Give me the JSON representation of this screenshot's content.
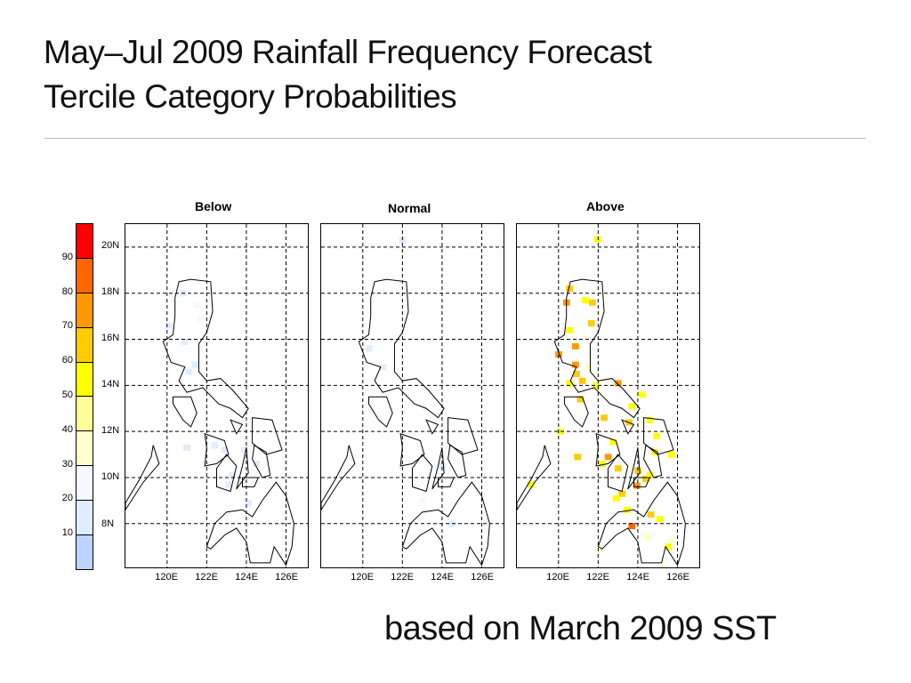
{
  "title_line1": "May–Jul 2009 Rainfall Frequency Forecast",
  "title_line2": "Tercile Category Probabilities",
  "footer": "based on March 2009 SST",
  "colorbar": {
    "labels": [
      "10",
      "20",
      "30",
      "40",
      "50",
      "60",
      "70",
      "80",
      "90"
    ],
    "colors": [
      "#bcd4ff",
      "#e0ecff",
      "#f5f8ff",
      "#ffffd0",
      "#ffff99",
      "#ffff00",
      "#ffcc00",
      "#ff9900",
      "#ff6600",
      "#ff0000"
    ]
  },
  "lat_labels": [
    "20N",
    "18N",
    "16N",
    "14N",
    "12N",
    "10N",
    "8N"
  ],
  "lon_labels": [
    "120E",
    "122E",
    "124E",
    "126E"
  ],
  "extent": {
    "lon": [
      117.9,
      127.1
    ],
    "lat": [
      6.1,
      21.0
    ]
  },
  "panels": [
    {
      "title": "Below",
      "cells": [
        [
          120.8,
          18.0,
          1
        ],
        [
          121.5,
          17.5,
          2
        ],
        [
          120.9,
          15.9,
          1
        ],
        [
          121.4,
          14.9,
          1
        ],
        [
          121.1,
          14.6,
          1
        ],
        [
          122.4,
          11.4,
          1
        ],
        [
          122.9,
          11.2,
          1
        ],
        [
          121.0,
          11.3,
          1
        ],
        [
          123.3,
          10.1,
          1
        ],
        [
          124.5,
          10.6,
          1
        ],
        [
          123.9,
          11.2,
          1
        ],
        [
          123.1,
          9.7,
          1
        ],
        [
          124.1,
          8.9,
          1
        ],
        [
          121.7,
          16.9,
          2
        ],
        [
          120.1,
          16.6,
          1
        ]
      ]
    },
    {
      "title": "Normal",
      "cells": [
        [
          122.0,
          20.3,
          1
        ],
        [
          121.0,
          14.8,
          1
        ],
        [
          124.0,
          10.5,
          1
        ],
        [
          124.5,
          8.0,
          1
        ],
        [
          123.0,
          9.0,
          2
        ],
        [
          120.3,
          15.6,
          1
        ]
      ]
    },
    {
      "title": "Above",
      "cells": [
        [
          121.97,
          20.35,
          5
        ],
        [
          120.55,
          18.2,
          6
        ],
        [
          120.4,
          17.6,
          7
        ],
        [
          121.35,
          17.7,
          5
        ],
        [
          121.7,
          17.6,
          6
        ],
        [
          121.65,
          16.7,
          6
        ],
        [
          120.55,
          16.4,
          5
        ],
        [
          120.85,
          15.7,
          7
        ],
        [
          120.0,
          15.35,
          7
        ],
        [
          120.85,
          14.9,
          7
        ],
        [
          120.9,
          14.5,
          6
        ],
        [
          121.2,
          14.2,
          6
        ],
        [
          120.55,
          14.1,
          5
        ],
        [
          123.0,
          14.1,
          7
        ],
        [
          121.1,
          13.4,
          6
        ],
        [
          122.3,
          12.6,
          6
        ],
        [
          123.55,
          12.4,
          6
        ],
        [
          120.1,
          12.0,
          5
        ],
        [
          122.75,
          11.55,
          5
        ],
        [
          120.95,
          10.9,
          6
        ],
        [
          122.5,
          10.9,
          7
        ],
        [
          122.2,
          10.6,
          5
        ],
        [
          123.0,
          10.4,
          6
        ],
        [
          124.85,
          11.1,
          5
        ],
        [
          125.7,
          11.0,
          5
        ],
        [
          124.0,
          10.3,
          6
        ],
        [
          124.4,
          9.95,
          6
        ],
        [
          123.95,
          9.65,
          7
        ],
        [
          124.6,
          10.1,
          5
        ],
        [
          123.2,
          9.3,
          6
        ],
        [
          122.9,
          9.1,
          5
        ],
        [
          123.45,
          8.6,
          5
        ],
        [
          123.7,
          7.9,
          8
        ],
        [
          124.65,
          8.4,
          6
        ],
        [
          125.1,
          8.2,
          5
        ],
        [
          124.5,
          7.4,
          3
        ],
        [
          125.55,
          7.0,
          5
        ],
        [
          125.7,
          7.3,
          3
        ],
        [
          122.05,
          6.9,
          3
        ],
        [
          125.25,
          6.1,
          3
        ],
        [
          118.6,
          9.7,
          5
        ],
        [
          124.2,
          13.6,
          5
        ],
        [
          123.7,
          13.1,
          5
        ],
        [
          124.6,
          12.5,
          5
        ],
        [
          124.95,
          11.8,
          5
        ],
        [
          121.9,
          14.0,
          5
        ],
        [
          121.5,
          14.8,
          3
        ]
      ]
    }
  ],
  "coastlines": [
    [
      [
        120.6,
        18.5
      ],
      [
        121.2,
        18.6
      ],
      [
        122.2,
        18.5
      ],
      [
        122.3,
        17.2
      ],
      [
        122.0,
        16.3
      ],
      [
        121.6,
        15.8
      ],
      [
        121.6,
        14.6
      ],
      [
        122.0,
        14.2
      ],
      [
        122.7,
        14.3
      ],
      [
        123.3,
        13.8
      ],
      [
        124.1,
        13.0
      ],
      [
        123.8,
        12.6
      ],
      [
        123.2,
        13.0
      ],
      [
        122.6,
        13.2
      ],
      [
        121.8,
        13.9
      ],
      [
        121.0,
        13.7
      ],
      [
        120.6,
        14.2
      ],
      [
        120.9,
        14.8
      ],
      [
        120.2,
        15.0
      ],
      [
        119.8,
        15.9
      ],
      [
        120.3,
        16.2
      ],
      [
        120.4,
        17.0
      ],
      [
        120.4,
        17.8
      ]
    ],
    [
      [
        120.3,
        13.5
      ],
      [
        121.2,
        13.5
      ],
      [
        121.5,
        12.8
      ],
      [
        121.2,
        12.2
      ],
      [
        120.8,
        12.5
      ],
      [
        120.3,
        13.2
      ]
    ],
    [
      [
        119.3,
        11.4
      ],
      [
        119.6,
        10.6
      ],
      [
        118.8,
        9.8
      ],
      [
        117.9,
        8.6
      ],
      [
        117.9,
        8.9
      ],
      [
        118.6,
        9.9
      ],
      [
        119.2,
        10.9
      ]
    ],
    [
      [
        121.9,
        11.9
      ],
      [
        122.9,
        11.6
      ],
      [
        123.1,
        11.0
      ],
      [
        122.5,
        10.6
      ],
      [
        121.9,
        10.5
      ],
      [
        122.0,
        11.3
      ]
    ],
    [
      [
        123.0,
        11.0
      ],
      [
        123.5,
        10.5
      ],
      [
        123.2,
        9.4
      ],
      [
        122.5,
        9.6
      ],
      [
        122.5,
        10.4
      ]
    ],
    [
      [
        124.0,
        11.3
      ],
      [
        124.1,
        10.2
      ],
      [
        123.5,
        9.5
      ],
      [
        123.8,
        10.5
      ]
    ],
    [
      [
        124.3,
        12.6
      ],
      [
        125.3,
        12.5
      ],
      [
        125.8,
        11.2
      ],
      [
        125.0,
        11.0
      ],
      [
        124.3,
        11.5
      ]
    ],
    [
      [
        124.4,
        11.4
      ],
      [
        125.0,
        11.1
      ],
      [
        125.2,
        10.1
      ],
      [
        124.8,
        10.0
      ],
      [
        124.3,
        10.8
      ]
    ],
    [
      [
        123.8,
        10.0
      ],
      [
        124.6,
        10.0
      ],
      [
        124.4,
        9.6
      ],
      [
        123.8,
        9.6
      ]
    ],
    [
      [
        123.2,
        12.5
      ],
      [
        123.8,
        12.3
      ],
      [
        123.5,
        11.9
      ]
    ],
    [
      [
        122.0,
        7.0
      ],
      [
        122.4,
        8.0
      ],
      [
        123.0,
        8.5
      ],
      [
        123.8,
        8.6
      ],
      [
        124.3,
        8.3
      ],
      [
        124.8,
        9.0
      ],
      [
        125.5,
        9.8
      ],
      [
        126.0,
        9.2
      ],
      [
        126.4,
        8.0
      ],
      [
        126.3,
        7.0
      ],
      [
        126.0,
        6.2
      ],
      [
        125.4,
        7.0
      ],
      [
        125.2,
        6.3
      ],
      [
        124.2,
        6.3
      ],
      [
        124.0,
        7.2
      ],
      [
        123.5,
        7.8
      ],
      [
        122.9,
        7.5
      ],
      [
        122.2,
        6.9
      ]
    ]
  ]
}
